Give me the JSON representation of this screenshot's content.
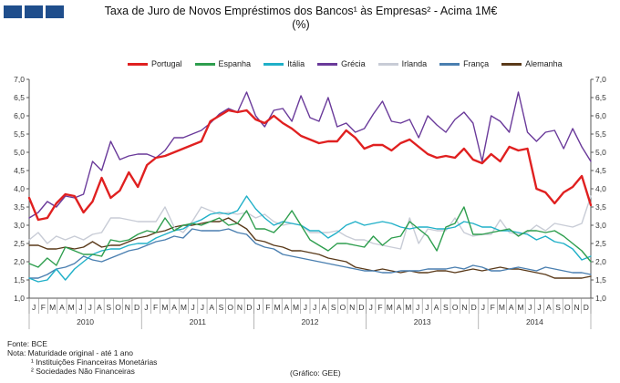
{
  "header": {
    "title_line1": "Taxa de Juro de Novos Empréstimos dos Bancos¹ às Empresas² - Acima 1M€",
    "title_line2": "(%)"
  },
  "notes": {
    "source": "Fonte: BCE",
    "note_title": "Nota: Maturidade original - até 1 ano",
    "note1": "¹ Instituições Financeiras Monetárias",
    "note2": "² Sociedades Não Financeiras",
    "credit": "(Gráfico: GEE)"
  },
  "chart_data": {
    "type": "line",
    "ylim": [
      1.0,
      7.0
    ],
    "yticks": [
      "1,0",
      "1,5",
      "2,0",
      "2,5",
      "3,0",
      "3,5",
      "4,0",
      "4,5",
      "5,0",
      "5,5",
      "6,0",
      "6,5",
      "7,0"
    ],
    "month_labels": [
      "J",
      "F",
      "M",
      "A",
      "M",
      "J",
      "J",
      "A",
      "S",
      "O",
      "N",
      "D",
      "J",
      "F",
      "M",
      "A",
      "M",
      "J",
      "J",
      "A",
      "S",
      "O",
      "N",
      "D",
      "J",
      "F",
      "M",
      "A",
      "M",
      "J",
      "J",
      "A",
      "S",
      "O",
      "N",
      "D",
      "J",
      "F",
      "M",
      "A",
      "M",
      "J",
      "J",
      "A",
      "S",
      "O",
      "N",
      "D",
      "J",
      "F",
      "M",
      "A",
      "M",
      "J",
      "J",
      "A",
      "S",
      "O",
      "N",
      "D"
    ],
    "years": [
      "2010",
      "2011",
      "2012",
      "2013",
      "2014"
    ],
    "legend_position": "top",
    "grid": false,
    "series": [
      {
        "name": "Portugal",
        "color": "#e02020",
        "width": 2.4,
        "values": [
          3.75,
          3.15,
          3.2,
          3.6,
          3.85,
          3.8,
          3.35,
          3.65,
          4.3,
          3.75,
          3.95,
          4.45,
          4.05,
          4.65,
          4.85,
          4.9,
          5.0,
          5.1,
          5.2,
          5.3,
          5.85,
          6.0,
          6.15,
          6.1,
          6.15,
          5.9,
          5.8,
          6.0,
          5.8,
          5.65,
          5.45,
          5.35,
          5.25,
          5.3,
          5.3,
          5.6,
          5.4,
          5.1,
          5.2,
          5.2,
          5.05,
          5.25,
          5.35,
          5.15,
          4.95,
          4.85,
          4.9,
          4.85,
          5.1,
          4.8,
          4.7,
          4.95,
          4.75,
          5.15,
          5.05,
          5.1,
          4.0,
          3.9,
          3.6,
          3.9,
          4.05,
          4.35,
          3.55
        ]
      },
      {
        "name": "Espanha",
        "color": "#2e9e4e",
        "width": 1.4,
        "values": [
          1.95,
          1.85,
          2.1,
          1.9,
          2.4,
          2.3,
          2.2,
          2.2,
          2.15,
          2.6,
          2.55,
          2.6,
          2.75,
          2.85,
          2.8,
          3.2,
          2.85,
          3.0,
          3.05,
          3.0,
          3.1,
          3.2,
          3.0,
          3.05,
          3.4,
          2.9,
          2.9,
          2.8,
          3.05,
          3.4,
          3.0,
          2.6,
          2.45,
          2.3,
          2.5,
          2.5,
          2.45,
          2.4,
          2.7,
          2.45,
          2.65,
          2.7,
          3.1,
          2.9,
          2.7,
          2.3,
          2.95,
          3.05,
          3.5,
          2.75,
          2.75,
          2.8,
          2.85,
          2.9,
          2.7,
          2.85,
          2.85,
          2.8,
          2.85,
          2.7,
          2.5,
          2.3,
          2.0
        ]
      },
      {
        "name": "Itália",
        "color": "#20b0c8",
        "width": 1.4,
        "values": [
          1.55,
          1.45,
          1.5,
          1.8,
          1.5,
          1.8,
          2.0,
          2.2,
          2.3,
          2.35,
          2.35,
          2.45,
          2.5,
          2.5,
          2.65,
          2.75,
          2.85,
          2.9,
          3.05,
          3.15,
          3.3,
          3.35,
          3.3,
          3.4,
          3.8,
          3.45,
          3.2,
          3.0,
          3.1,
          3.05,
          3.0,
          2.85,
          2.85,
          2.65,
          2.8,
          3.0,
          3.1,
          3.0,
          3.05,
          3.1,
          3.05,
          2.95,
          2.9,
          2.95,
          2.95,
          2.9,
          2.9,
          2.95,
          3.1,
          3.05,
          2.95,
          2.95,
          2.85,
          2.85,
          2.8,
          2.75,
          2.6,
          2.7,
          2.55,
          2.5,
          2.35,
          2.05,
          2.15
        ]
      },
      {
        "name": "Grécia",
        "color": "#6a3a9a",
        "width": 1.4,
        "values": [
          3.2,
          3.35,
          3.65,
          3.5,
          3.8,
          3.75,
          3.85,
          4.75,
          4.5,
          5.3,
          4.8,
          4.9,
          4.95,
          4.95,
          4.85,
          5.05,
          5.4,
          5.4,
          5.5,
          5.6,
          5.8,
          6.05,
          6.2,
          6.1,
          6.65,
          6.0,
          5.7,
          6.15,
          6.2,
          5.85,
          6.55,
          5.95,
          5.85,
          6.5,
          5.7,
          5.8,
          5.55,
          5.65,
          6.05,
          6.4,
          5.85,
          5.8,
          5.9,
          5.4,
          6.0,
          5.75,
          5.55,
          5.9,
          6.1,
          5.8,
          4.75,
          6.0,
          5.85,
          5.55,
          6.65,
          5.55,
          5.3,
          5.55,
          5.6,
          5.1,
          5.65,
          5.15,
          4.75
        ]
      },
      {
        "name": "Irlanda",
        "color": "#c8ccd6",
        "width": 1.4,
        "values": [
          2.6,
          2.8,
          2.5,
          2.7,
          2.6,
          2.7,
          2.6,
          2.75,
          2.8,
          3.2,
          3.2,
          3.15,
          3.1,
          3.1,
          3.1,
          3.5,
          2.95,
          2.8,
          3.1,
          3.5,
          3.4,
          3.3,
          3.35,
          3.3,
          3.35,
          3.2,
          3.3,
          3.1,
          3.0,
          3.05,
          3.0,
          2.8,
          2.8,
          2.8,
          2.85,
          2.7,
          2.6,
          2.6,
          2.5,
          2.45,
          2.4,
          2.35,
          3.2,
          2.5,
          2.9,
          2.85,
          2.85,
          3.2,
          2.8,
          2.7,
          2.75,
          2.75,
          3.15,
          2.8,
          2.75,
          2.8,
          3.0,
          2.85,
          3.05,
          3.0,
          2.95,
          3.05,
          3.8
        ]
      },
      {
        "name": "França",
        "color": "#4a7fb0",
        "width": 1.4,
        "values": [
          1.55,
          1.55,
          1.65,
          1.8,
          1.85,
          1.95,
          2.15,
          2.05,
          2.0,
          2.1,
          2.2,
          2.3,
          2.35,
          2.45,
          2.55,
          2.6,
          2.7,
          2.65,
          2.9,
          2.85,
          2.85,
          2.85,
          2.9,
          2.8,
          2.75,
          2.5,
          2.4,
          2.35,
          2.2,
          2.15,
          2.1,
          2.05,
          2.0,
          1.95,
          1.9,
          1.85,
          1.8,
          1.75,
          1.75,
          1.7,
          1.7,
          1.75,
          1.75,
          1.75,
          1.8,
          1.8,
          1.8,
          1.85,
          1.8,
          1.9,
          1.85,
          1.75,
          1.75,
          1.8,
          1.85,
          1.8,
          1.75,
          1.85,
          1.8,
          1.75,
          1.7,
          1.7,
          1.65
        ]
      },
      {
        "name": "Alemanha",
        "color": "#5a3a1a",
        "width": 1.4,
        "values": [
          2.45,
          2.45,
          2.35,
          2.35,
          2.4,
          2.35,
          2.4,
          2.55,
          2.4,
          2.45,
          2.45,
          2.55,
          2.65,
          2.7,
          2.8,
          2.85,
          2.95,
          3.0,
          3.0,
          3.05,
          3.1,
          3.1,
          3.2,
          3.05,
          2.9,
          2.6,
          2.55,
          2.45,
          2.4,
          2.3,
          2.3,
          2.25,
          2.2,
          2.1,
          2.05,
          2.0,
          1.85,
          1.8,
          1.75,
          1.8,
          1.75,
          1.7,
          1.75,
          1.7,
          1.7,
          1.75,
          1.75,
          1.7,
          1.75,
          1.8,
          1.75,
          1.8,
          1.85,
          1.8,
          1.8,
          1.75,
          1.7,
          1.65,
          1.55,
          1.55,
          1.55,
          1.55,
          1.6
        ]
      }
    ]
  }
}
